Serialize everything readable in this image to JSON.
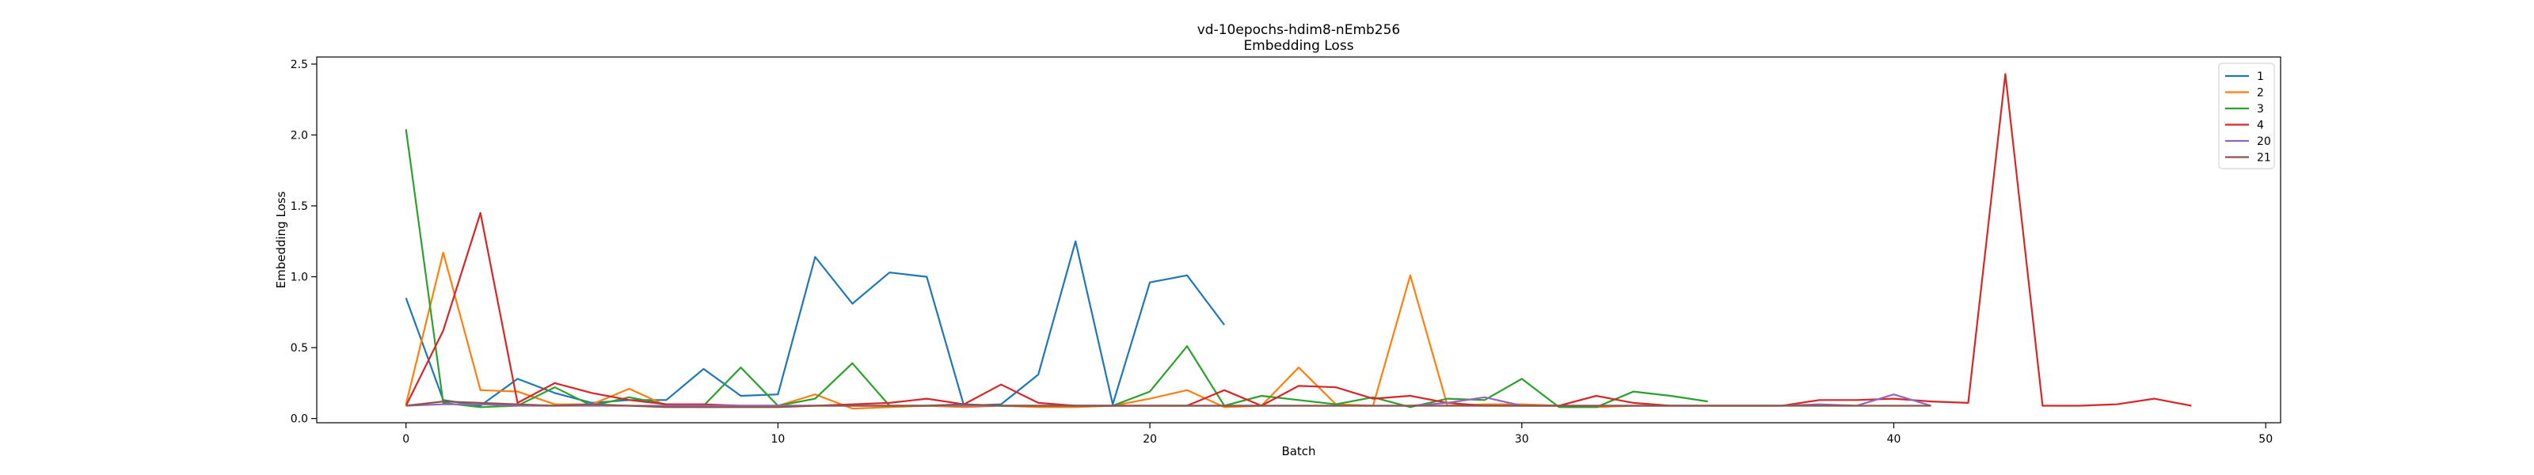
{
  "chart_data": {
    "type": "line",
    "title": "vd-10epochs-hdim8-nEmb256",
    "subtitle": "Embedding Loss",
    "xlabel": "Batch",
    "ylabel": "Embedding Loss",
    "xlim": [
      -2.4,
      50.4
    ],
    "ylim": [
      -0.03,
      2.55
    ],
    "xticks": [
      0,
      10,
      20,
      30,
      40,
      50
    ],
    "yticks": [
      0.0,
      0.5,
      1.0,
      1.5,
      2.0,
      2.5
    ],
    "ytick_labels": [
      "0.0",
      "0.5",
      "1.0",
      "1.5",
      "2.0",
      "2.5"
    ],
    "grid": false,
    "legend_position": "top-right",
    "series": [
      {
        "name": "1",
        "color": "#1f77b4",
        "x": [
          0,
          1,
          2,
          3,
          4,
          5,
          6,
          7,
          8,
          9,
          10,
          11,
          12,
          13,
          14,
          15,
          16,
          17,
          18,
          19,
          20,
          21,
          22
        ],
        "y": [
          0.85,
          0.13,
          0.09,
          0.28,
          0.18,
          0.11,
          0.13,
          0.13,
          0.35,
          0.16,
          0.17,
          1.14,
          0.81,
          1.03,
          1.0,
          0.09,
          0.1,
          0.31,
          1.25,
          0.1,
          0.96,
          1.01,
          0.66
        ]
      },
      {
        "name": "2",
        "color": "#ff7f0e",
        "x": [
          0,
          1,
          2,
          3,
          4,
          5,
          6,
          7,
          8,
          9,
          10,
          11,
          12,
          13,
          14,
          15,
          16,
          17,
          18,
          19,
          20,
          21,
          22,
          23,
          24,
          25,
          26,
          27,
          28,
          29,
          30,
          31,
          32,
          33,
          34
        ],
        "y": [
          0.1,
          1.17,
          0.2,
          0.19,
          0.1,
          0.1,
          0.21,
          0.09,
          0.08,
          0.09,
          0.09,
          0.17,
          0.07,
          0.08,
          0.09,
          0.08,
          0.09,
          0.08,
          0.08,
          0.09,
          0.14,
          0.2,
          0.08,
          0.09,
          0.36,
          0.1,
          0.09,
          1.01,
          0.09,
          0.1,
          0.1,
          0.09,
          0.08,
          0.09,
          0.09
        ]
      },
      {
        "name": "3",
        "color": "#2ca02c",
        "x": [
          0,
          1,
          2,
          3,
          4,
          5,
          6,
          7,
          8,
          9,
          10,
          11,
          12,
          13,
          14,
          15,
          16,
          17,
          18,
          19,
          20,
          21,
          22,
          23,
          24,
          25,
          26,
          27,
          28,
          29,
          30,
          31,
          32,
          33,
          34,
          35
        ],
        "y": [
          2.04,
          0.11,
          0.08,
          0.09,
          0.22,
          0.09,
          0.15,
          0.1,
          0.09,
          0.36,
          0.09,
          0.14,
          0.39,
          0.09,
          0.09,
          0.1,
          0.09,
          0.09,
          0.09,
          0.09,
          0.19,
          0.51,
          0.09,
          0.16,
          0.13,
          0.1,
          0.15,
          0.08,
          0.14,
          0.13,
          0.28,
          0.08,
          0.08,
          0.19,
          0.16,
          0.12
        ]
      },
      {
        "name": "4",
        "color": "#d62728",
        "x": [
          0,
          1,
          2,
          3,
          4,
          5,
          6,
          7,
          8,
          9,
          10,
          11,
          12,
          13,
          14,
          15,
          16,
          17,
          18,
          19,
          20,
          21,
          22,
          23,
          24,
          25,
          26,
          27,
          28,
          29,
          30,
          31,
          32,
          33,
          34,
          35,
          36,
          37,
          38,
          39,
          40,
          41,
          42,
          43,
          44,
          45,
          46,
          47,
          48
        ],
        "y": [
          0.09,
          0.62,
          1.45,
          0.11,
          0.25,
          0.18,
          0.13,
          0.1,
          0.1,
          0.09,
          0.09,
          0.09,
          0.1,
          0.11,
          0.14,
          0.1,
          0.24,
          0.11,
          0.09,
          0.09,
          0.09,
          0.09,
          0.2,
          0.09,
          0.23,
          0.22,
          0.14,
          0.16,
          0.11,
          0.09,
          0.09,
          0.09,
          0.16,
          0.11,
          0.09,
          0.09,
          0.09,
          0.09,
          0.13,
          0.13,
          0.14,
          0.12,
          0.11,
          2.43,
          0.09,
          0.09,
          0.1,
          0.14,
          0.09
        ]
      },
      {
        "name": "20",
        "color": "#9467bd",
        "x": [
          0,
          1,
          2,
          3,
          4,
          5,
          6,
          7,
          8,
          9,
          10,
          11,
          12,
          13,
          14,
          15,
          16,
          17,
          18,
          19,
          20,
          21,
          22,
          23,
          24,
          25,
          26,
          27,
          28,
          29,
          30,
          31,
          32,
          33,
          34,
          35,
          36,
          37,
          38,
          39,
          40,
          41
        ],
        "y": [
          0.09,
          0.1,
          0.1,
          0.09,
          0.09,
          0.09,
          0.09,
          0.09,
          0.09,
          0.09,
          0.09,
          0.09,
          0.09,
          0.09,
          0.09,
          0.09,
          0.09,
          0.09,
          0.09,
          0.09,
          0.09,
          0.09,
          0.09,
          0.09,
          0.09,
          0.09,
          0.09,
          0.09,
          0.11,
          0.15,
          0.09,
          0.09,
          0.09,
          0.09,
          0.09,
          0.09,
          0.09,
          0.09,
          0.1,
          0.09,
          0.17,
          0.09
        ]
      },
      {
        "name": "21",
        "color": "#8c564b",
        "x": [
          0,
          1,
          2,
          3,
          4,
          5,
          6,
          7,
          8,
          9,
          10,
          11,
          12,
          13,
          14,
          15,
          16,
          17,
          18,
          19,
          20,
          21,
          22,
          23,
          24,
          25,
          26,
          27,
          28,
          29,
          30,
          31,
          32,
          33,
          34,
          35,
          36,
          37,
          38,
          39,
          40,
          41
        ],
        "y": [
          0.09,
          0.12,
          0.11,
          0.1,
          0.09,
          0.1,
          0.09,
          0.08,
          0.08,
          0.08,
          0.08,
          0.09,
          0.09,
          0.09,
          0.09,
          0.1,
          0.09,
          0.09,
          0.09,
          0.09,
          0.09,
          0.09,
          0.09,
          0.09,
          0.09,
          0.09,
          0.09,
          0.09,
          0.09,
          0.09,
          0.09,
          0.09,
          0.09,
          0.09,
          0.09,
          0.09,
          0.09,
          0.09,
          0.09,
          0.09,
          0.09,
          0.09
        ]
      }
    ]
  }
}
